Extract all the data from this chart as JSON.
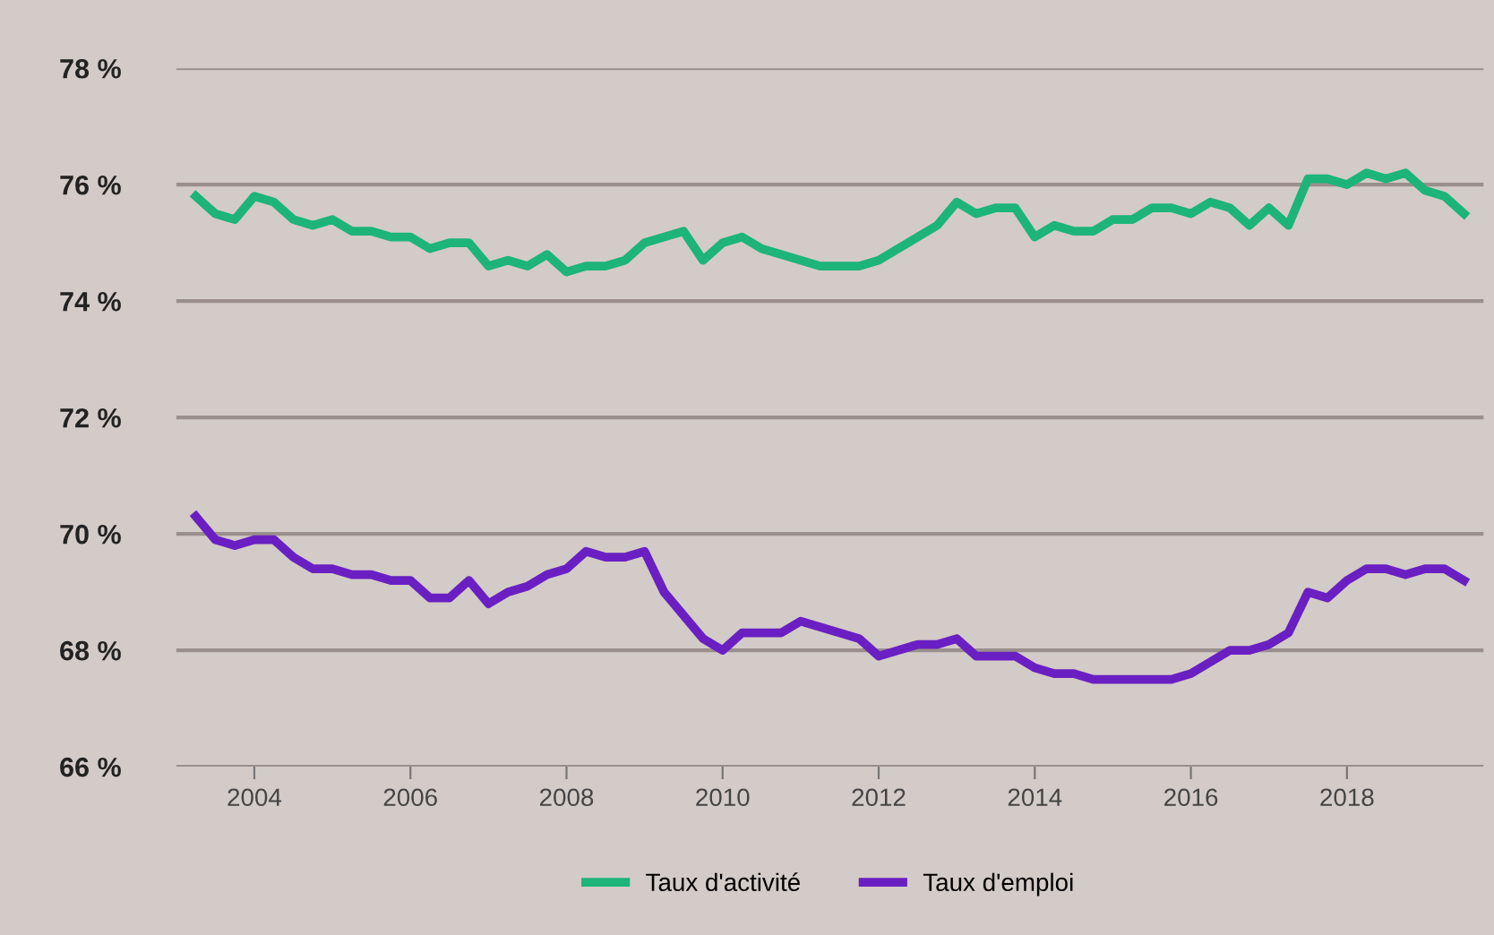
{
  "chart_data": {
    "type": "line",
    "x": [
      2003.25,
      2003.5,
      2003.75,
      2004.0,
      2004.25,
      2004.5,
      2004.75,
      2005.0,
      2005.25,
      2005.5,
      2005.75,
      2006.0,
      2006.25,
      2006.5,
      2006.75,
      2007.0,
      2007.25,
      2007.5,
      2007.75,
      2008.0,
      2008.25,
      2008.5,
      2008.75,
      2009.0,
      2009.25,
      2009.5,
      2009.75,
      2010.0,
      2010.25,
      2010.5,
      2010.75,
      2011.0,
      2011.25,
      2011.5,
      2011.75,
      2012.0,
      2012.25,
      2012.5,
      2012.75,
      2013.0,
      2013.25,
      2013.5,
      2013.75,
      2014.0,
      2014.25,
      2014.5,
      2014.75,
      2015.0,
      2015.25,
      2015.5,
      2015.75,
      2016.0,
      2016.25,
      2016.5,
      2016.75,
      2017.0,
      2017.25,
      2017.5,
      2017.75,
      2018.0,
      2018.25,
      2018.5,
      2018.75,
      2019.0,
      2019.25,
      2019.5
    ],
    "series": [
      {
        "name": "Taux d'activité",
        "color": "#1db47a",
        "values": [
          75.8,
          75.5,
          75.4,
          75.8,
          75.7,
          75.4,
          75.3,
          75.4,
          75.2,
          75.2,
          75.1,
          75.1,
          74.9,
          75.0,
          75.0,
          74.6,
          74.7,
          74.6,
          74.8,
          74.5,
          74.6,
          74.6,
          74.7,
          75.0,
          75.1,
          75.2,
          74.7,
          75.0,
          75.1,
          74.9,
          74.8,
          74.7,
          74.6,
          74.6,
          74.6,
          74.7,
          74.9,
          75.1,
          75.3,
          75.7,
          75.5,
          75.6,
          75.6,
          75.1,
          75.3,
          75.2,
          75.2,
          75.4,
          75.4,
          75.6,
          75.6,
          75.5,
          75.7,
          75.6,
          75.3,
          75.6,
          75.3,
          76.1,
          76.1,
          76.0,
          76.2,
          76.1,
          76.2,
          75.9,
          75.8,
          75.5
        ]
      },
      {
        "name": "Taux d'emploi",
        "color": "#6a1fc2",
        "values": [
          70.3,
          69.9,
          69.8,
          69.9,
          69.9,
          69.6,
          69.4,
          69.4,
          69.3,
          69.3,
          69.2,
          69.2,
          68.9,
          68.9,
          69.2,
          68.8,
          69.0,
          69.1,
          69.3,
          69.4,
          69.7,
          69.6,
          69.6,
          69.7,
          69.0,
          68.6,
          68.2,
          68.0,
          68.3,
          68.3,
          68.3,
          68.5,
          68.4,
          68.3,
          68.2,
          67.9,
          68.0,
          68.1,
          68.1,
          68.2,
          67.9,
          67.9,
          67.9,
          67.7,
          67.6,
          67.6,
          67.5,
          67.5,
          67.5,
          67.5,
          67.5,
          67.6,
          67.8,
          68.0,
          68.0,
          68.1,
          68.3,
          69.0,
          68.9,
          69.2,
          69.4,
          69.4,
          69.3,
          69.4,
          69.4,
          69.2
        ]
      }
    ],
    "xlim": [
      2003,
      2019.75
    ],
    "xticks": [
      2004,
      2006,
      2008,
      2010,
      2012,
      2014,
      2016,
      2018
    ],
    "ylim": [
      66,
      78
    ],
    "yticks": [
      {
        "value": 66,
        "label": "66 %"
      },
      {
        "value": 68,
        "label": "68 %"
      },
      {
        "value": 70,
        "label": "70 %"
      },
      {
        "value": 72,
        "label": "72 %"
      },
      {
        "value": 74,
        "label": "74 %"
      },
      {
        "value": 76,
        "label": "76 %"
      },
      {
        "value": 78,
        "label": "78 %"
      }
    ],
    "grid": "y",
    "legend": "bottom",
    "marker": "none",
    "line_style": "solid"
  }
}
